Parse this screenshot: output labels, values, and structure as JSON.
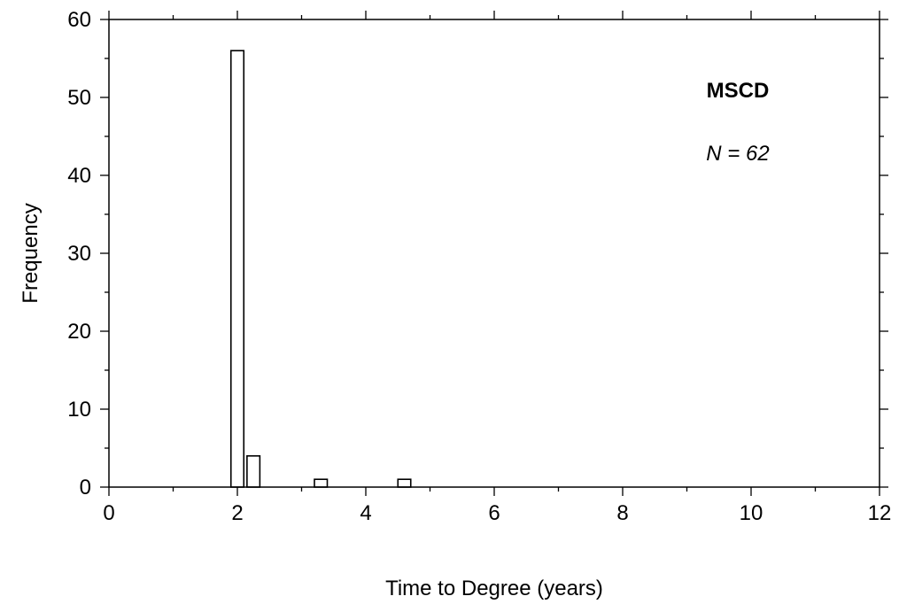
{
  "chart_data": {
    "type": "bar",
    "xlabel": "Time to Degree (years)",
    "ylabel": "Frequency",
    "xlim": [
      0,
      12
    ],
    "ylim": [
      0,
      60
    ],
    "x_ticks": [
      0,
      2,
      4,
      6,
      8,
      10,
      12
    ],
    "y_ticks": [
      0,
      10,
      20,
      30,
      40,
      50,
      60
    ],
    "grid": false,
    "bar_width": 0.2,
    "bars": [
      {
        "x": 2.0,
        "value": 56
      },
      {
        "x": 2.25,
        "value": 4
      },
      {
        "x": 3.3,
        "value": 1
      },
      {
        "x": 4.6,
        "value": 1
      }
    ],
    "annotations": {
      "label": "MSCD",
      "n_text": "N = 62"
    }
  }
}
